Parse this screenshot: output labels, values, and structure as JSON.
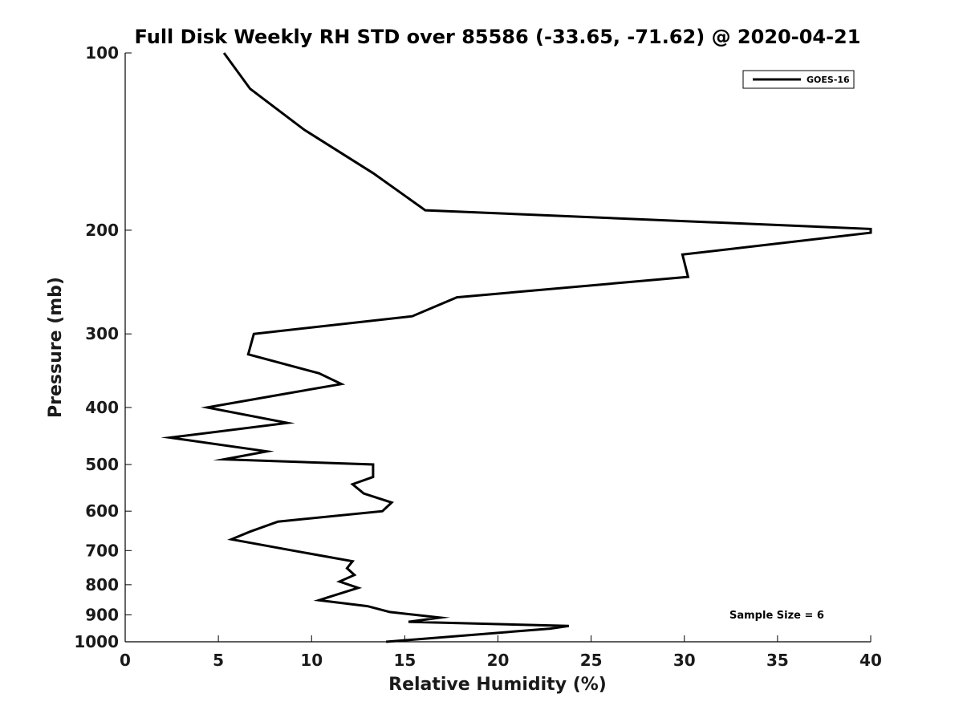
{
  "chart_data": {
    "type": "line",
    "title": "Full Disk Weekly RH STD over 85586 (-33.65, -71.62) @ 2020-04-21",
    "xlabel": "Relative Humidity (%)",
    "ylabel": "Pressure (mb)",
    "xlim": [
      0,
      40
    ],
    "ylim": [
      100,
      1000
    ],
    "y_scale": "log",
    "y_reversed": true,
    "x_ticks": [
      0,
      5,
      10,
      15,
      20,
      25,
      30,
      35,
      40
    ],
    "y_ticks": [
      100,
      200,
      300,
      400,
      500,
      600,
      700,
      800,
      900,
      1000
    ],
    "grid": false,
    "legend_position": "top-right",
    "annotation": "Sample Size = 6",
    "series": [
      {
        "name": "GOES-16",
        "color": "#000000",
        "points": [
          [
            5.3,
            100
          ],
          [
            6.7,
            115
          ],
          [
            9.6,
            135
          ],
          [
            13.3,
            160
          ],
          [
            16.1,
            185
          ],
          [
            40.0,
            199
          ],
          [
            40.0,
            202
          ],
          [
            29.9,
            220
          ],
          [
            30.2,
            240
          ],
          [
            17.8,
            260
          ],
          [
            15.4,
            280
          ],
          [
            6.9,
            300
          ],
          [
            6.6,
            325
          ],
          [
            10.4,
            350
          ],
          [
            11.6,
            365
          ],
          [
            8.4,
            380
          ],
          [
            4.4,
            400
          ],
          [
            8.7,
            425
          ],
          [
            2.4,
            450
          ],
          [
            7.6,
            475
          ],
          [
            5.3,
            490
          ],
          [
            13.3,
            500
          ],
          [
            13.3,
            525
          ],
          [
            12.2,
            540
          ],
          [
            12.8,
            560
          ],
          [
            14.3,
            580
          ],
          [
            13.8,
            600
          ],
          [
            8.2,
            625
          ],
          [
            6.7,
            650
          ],
          [
            5.7,
            670
          ],
          [
            9.0,
            700
          ],
          [
            12.2,
            730
          ],
          [
            11.9,
            750
          ],
          [
            12.3,
            770
          ],
          [
            11.5,
            790
          ],
          [
            12.5,
            810
          ],
          [
            10.9,
            840
          ],
          [
            10.4,
            850
          ],
          [
            13.0,
            870
          ],
          [
            14.2,
            890
          ],
          [
            16.9,
            910
          ],
          [
            15.2,
            925
          ],
          [
            23.8,
            940
          ],
          [
            22.8,
            950
          ],
          [
            14.0,
            1000
          ]
        ]
      }
    ]
  }
}
